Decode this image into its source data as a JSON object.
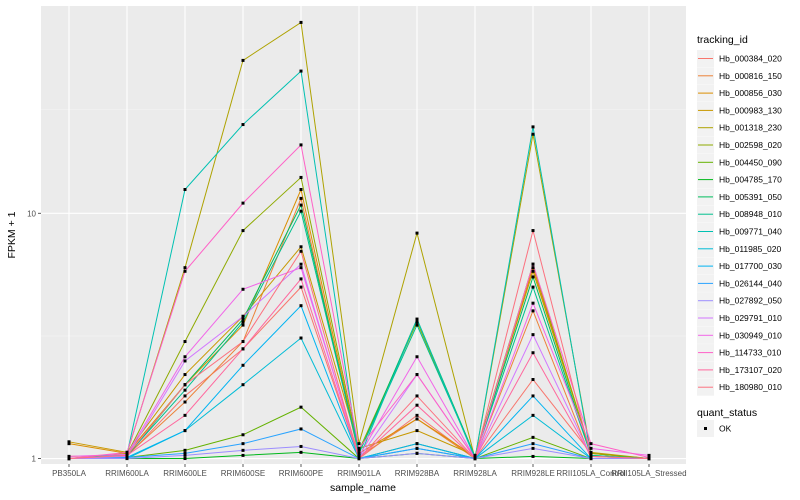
{
  "chart_data": {
    "type": "line",
    "title": "",
    "xlabel": "sample_name",
    "ylabel": "FPKM + 1",
    "y_scale": "log10",
    "ylim": [
      0.95,
      70
    ],
    "y_ticks": [
      1,
      10
    ],
    "y_tick_labels": [
      "1",
      "10"
    ],
    "grid": true,
    "legend_position": "right",
    "categories": [
      "PB350LA",
      "RRIM600LA",
      "RRIM600LE",
      "RRIM600SE",
      "RRIM600PE",
      "RRIM901LA",
      "RRIM928BA",
      "RRIM928LA",
      "RRIM928LE",
      "RRII105LA_Control",
      "RRII105LA_Stressed"
    ],
    "legend": {
      "color_title": "tracking_id",
      "shape_title": "quant_status",
      "shape_items": [
        "OK"
      ]
    },
    "series": [
      {
        "name": "Hb_000384_020",
        "color": "#F8766D",
        "values": [
          1.0,
          1.02,
          1.8,
          2.8,
          5.0,
          1.0,
          1.5,
          1.0,
          2.1,
          1.05,
          1.0
        ]
      },
      {
        "name": "Hb_000816_150",
        "color": "#EC8239",
        "values": [
          1.02,
          1.03,
          1.7,
          3.0,
          11.5,
          1.02,
          1.45,
          1.0,
          4.0,
          1.0,
          1.0
        ]
      },
      {
        "name": "Hb_000856_030",
        "color": "#DB8E00",
        "values": [
          1.15,
          1.05,
          2.0,
          3.5,
          12.5,
          1.05,
          1.45,
          1.02,
          6.0,
          1.05,
          1.0
        ]
      },
      {
        "name": "Hb_000983_130",
        "color": "#C79800",
        "values": [
          1.17,
          1.06,
          2.2,
          3.8,
          7.3,
          1.1,
          1.3,
          1.03,
          5.8,
          1.06,
          1.0
        ]
      },
      {
        "name": "Hb_001318_230",
        "color": "#AEA200",
        "values": [
          1.0,
          1.05,
          6.0,
          42.0,
          60.0,
          1.15,
          8.3,
          1.0,
          21.0,
          1.05,
          1.0
        ]
      },
      {
        "name": "Hb_002598_020",
        "color": "#8FAA00",
        "values": [
          1.0,
          1.04,
          3.0,
          8.5,
          14.0,
          1.08,
          3.6,
          1.02,
          6.2,
          1.05,
          1.0
        ]
      },
      {
        "name": "Hb_004450_090",
        "color": "#64B200",
        "values": [
          1.0,
          1.01,
          1.08,
          1.25,
          1.62,
          1.0,
          1.15,
          1.0,
          1.22,
          1.0,
          1.0
        ]
      },
      {
        "name": "Hb_004785_170",
        "color": "#00B81B",
        "values": [
          1.0,
          1.0,
          1.0,
          1.03,
          1.06,
          1.0,
          1.05,
          1.0,
          1.02,
          1.0,
          1.0
        ]
      },
      {
        "name": "Hb_005391_050",
        "color": "#00BD5C",
        "values": [
          1.0,
          1.02,
          2.0,
          3.7,
          10.8,
          1.05,
          3.7,
          1.02,
          5.5,
          1.03,
          1.0
        ]
      },
      {
        "name": "Hb_008948_010",
        "color": "#00C08E",
        "values": [
          1.0,
          1.03,
          1.9,
          3.6,
          10.2,
          1.05,
          3.5,
          1.02,
          5.0,
          1.03,
          1.0
        ]
      },
      {
        "name": "Hb_009771_040",
        "color": "#00C1B2",
        "values": [
          1.0,
          1.04,
          12.5,
          23.0,
          38.0,
          1.0,
          3.7,
          1.0,
          22.5,
          1.02,
          1.0
        ]
      },
      {
        "name": "Hb_011985_020",
        "color": "#00BCD6",
        "values": [
          1.0,
          1.0,
          1.3,
          2.0,
          3.1,
          1.0,
          1.1,
          1.0,
          1.5,
          1.0,
          1.0
        ]
      },
      {
        "name": "Hb_017700_030",
        "color": "#00B3F2",
        "values": [
          1.0,
          1.01,
          1.3,
          2.4,
          4.2,
          1.0,
          1.15,
          1.0,
          1.8,
          1.0,
          1.0
        ]
      },
      {
        "name": "Hb_026144_040",
        "color": "#29A3FF",
        "values": [
          1.0,
          1.01,
          1.05,
          1.15,
          1.32,
          1.0,
          1.1,
          1.0,
          1.15,
          1.0,
          1.0
        ]
      },
      {
        "name": "Hb_027892_050",
        "color": "#9C8DFF",
        "values": [
          1.0,
          1.0,
          1.03,
          1.08,
          1.12,
          1.0,
          1.05,
          1.0,
          1.1,
          1.0,
          1.0
        ]
      },
      {
        "name": "Hb_029791_010",
        "color": "#D277FF",
        "values": [
          1.0,
          1.02,
          2.5,
          3.8,
          6.2,
          1.0,
          2.2,
          1.0,
          3.2,
          1.02,
          1.0
        ]
      },
      {
        "name": "Hb_030949_010",
        "color": "#F166E8",
        "values": [
          1.02,
          1.04,
          2.6,
          4.9,
          6.0,
          1.02,
          2.6,
          1.0,
          4.3,
          1.1,
          1.03
        ]
      },
      {
        "name": "Hb_114733_010",
        "color": "#FF61C7",
        "values": [
          1.0,
          1.06,
          5.8,
          11.0,
          19.0,
          1.1,
          2.2,
          1.0,
          6.2,
          1.15,
          1.01
        ]
      },
      {
        "name": "Hb_173107_020",
        "color": "#FF689E",
        "values": [
          1.0,
          1.03,
          1.5,
          2.8,
          5.4,
          1.0,
          1.65,
          1.0,
          2.7,
          1.02,
          1.0
        ]
      },
      {
        "name": "Hb_180980_010",
        "color": "#FC717F",
        "values": [
          1.0,
          1.03,
          2.0,
          3.0,
          7.0,
          1.0,
          1.8,
          1.0,
          8.5,
          1.02,
          1.0
        ]
      }
    ]
  }
}
